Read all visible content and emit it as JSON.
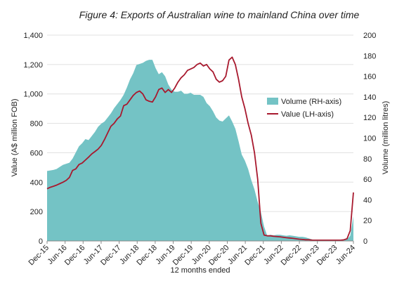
{
  "chart_data": {
    "type": "line",
    "title": "Figure 4: Exports of Australian wine to mainland China over time",
    "xlabel": "12 months ended",
    "ylabel_left": "Value (A$ million FOB)",
    "ylabel_right": "Volume (million litres)",
    "ylim_left": [
      0,
      1400
    ],
    "ylim_right": [
      0,
      200
    ],
    "yticks_left": [
      "0",
      "200",
      "400",
      "600",
      "800",
      "1,000",
      "1,200",
      "1,400"
    ],
    "yticks_right": [
      "0",
      "20",
      "40",
      "60",
      "80",
      "100",
      "120",
      "140",
      "160",
      "180",
      "200"
    ],
    "x_tick_labels": [
      "Dec-15",
      "Jun-16",
      "Dec-16",
      "Jun-17",
      "Dec-17",
      "Jun-18",
      "Dec-18",
      "Jun-19",
      "Dec-19",
      "Jun-20",
      "Dec-20",
      "Jun-21",
      "Dec-21",
      "Jun-22",
      "Dec-22",
      "Jun-23",
      "Dec-23",
      "Jun-24"
    ],
    "legend_position": "right-center",
    "series": [
      {
        "name": "Volume (RH-axis)",
        "axis": "right",
        "style": "area",
        "color": "#74C3C5",
        "values": [
          68,
          68.5,
          69,
          70,
          72,
          74,
          75,
          76,
          80,
          86,
          92,
          95,
          99,
          98,
          102,
          106,
          111,
          114,
          116,
          120,
          124,
          129,
          133,
          137,
          142,
          149,
          157,
          163,
          171,
          172,
          173,
          175,
          176,
          176,
          168,
          162,
          164,
          160,
          152,
          147,
          145,
          145,
          146,
          143,
          143,
          144,
          142,
          142,
          142,
          140,
          134,
          131,
          126,
          120,
          117,
          116,
          119,
          122,
          116,
          109,
          97,
          84,
          78,
          70,
          59,
          50,
          38,
          28,
          14,
          5,
          6,
          5.5,
          6,
          6,
          5.5,
          5,
          5.5,
          5,
          4.5,
          4,
          4,
          3.5,
          2.5,
          1.5,
          1,
          0.5,
          0.5,
          0.5,
          0.5,
          0.5,
          0.5,
          0.5,
          0.5,
          0.7,
          1.5,
          5,
          24
        ]
      },
      {
        "name": "Value (LH-axis)",
        "axis": "left",
        "style": "line",
        "color": "#A8192E",
        "values": [
          355,
          365,
          372,
          380,
          390,
          400,
          412,
          432,
          480,
          490,
          520,
          530,
          550,
          570,
          592,
          608,
          625,
          650,
          690,
          735,
          780,
          800,
          830,
          850,
          920,
          930,
          960,
          990,
          1010,
          1020,
          1000,
          960,
          950,
          945,
          980,
          1030,
          1040,
          1010,
          1030,
          1010,
          1040,
          1080,
          1110,
          1130,
          1160,
          1170,
          1180,
          1200,
          1210,
          1190,
          1200,
          1170,
          1150,
          1100,
          1080,
          1090,
          1120,
          1230,
          1250,
          1200,
          1100,
          980,
          900,
          800,
          720,
          600,
          420,
          120,
          40,
          35,
          35,
          32,
          30,
          28,
          25,
          22,
          20,
          18,
          15,
          12,
          10,
          8,
          8,
          6,
          5,
          5,
          5,
          5,
          5,
          5,
          5,
          5,
          5,
          8,
          15,
          70,
          330
        ]
      }
    ]
  }
}
